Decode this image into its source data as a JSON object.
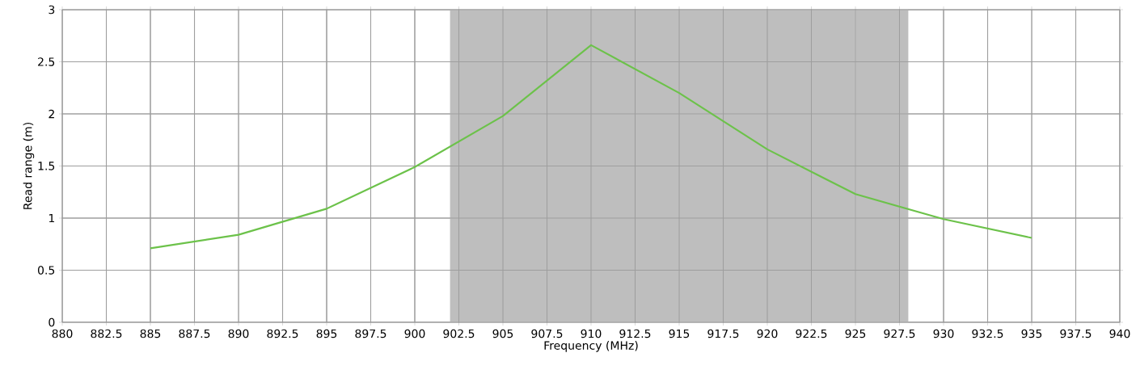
{
  "chart_data": {
    "type": "line",
    "xlabel": "Frequency (MHz)",
    "ylabel": "Read range (m)",
    "x": [
      885,
      890,
      895,
      900,
      905,
      910,
      915,
      920,
      925,
      930,
      935
    ],
    "series": [
      {
        "color": "#6cc24a",
        "values": [
          0.71,
          0.84,
          1.09,
          1.49,
          1.98,
          2.66,
          2.2,
          1.66,
          1.23,
          0.99,
          0.81
        ]
      }
    ],
    "xlim": [
      880,
      940
    ],
    "xticks": [
      880,
      882.5,
      885,
      887.5,
      890,
      892.5,
      895,
      897.5,
      900,
      902.5,
      905,
      907.5,
      910,
      912.5,
      915,
      917.5,
      920,
      922.5,
      925,
      927.5,
      930,
      932.5,
      935,
      937.5,
      940
    ],
    "ylim": [
      0,
      3
    ],
    "yticks": [
      0,
      0.5,
      1,
      1.5,
      2,
      2.5,
      3
    ],
    "bands": [
      {
        "axis": "x",
        "from": 902,
        "to": 928,
        "color": "#bebebe"
      }
    ],
    "grid": true,
    "marker": "none",
    "line_style": "solid"
  }
}
